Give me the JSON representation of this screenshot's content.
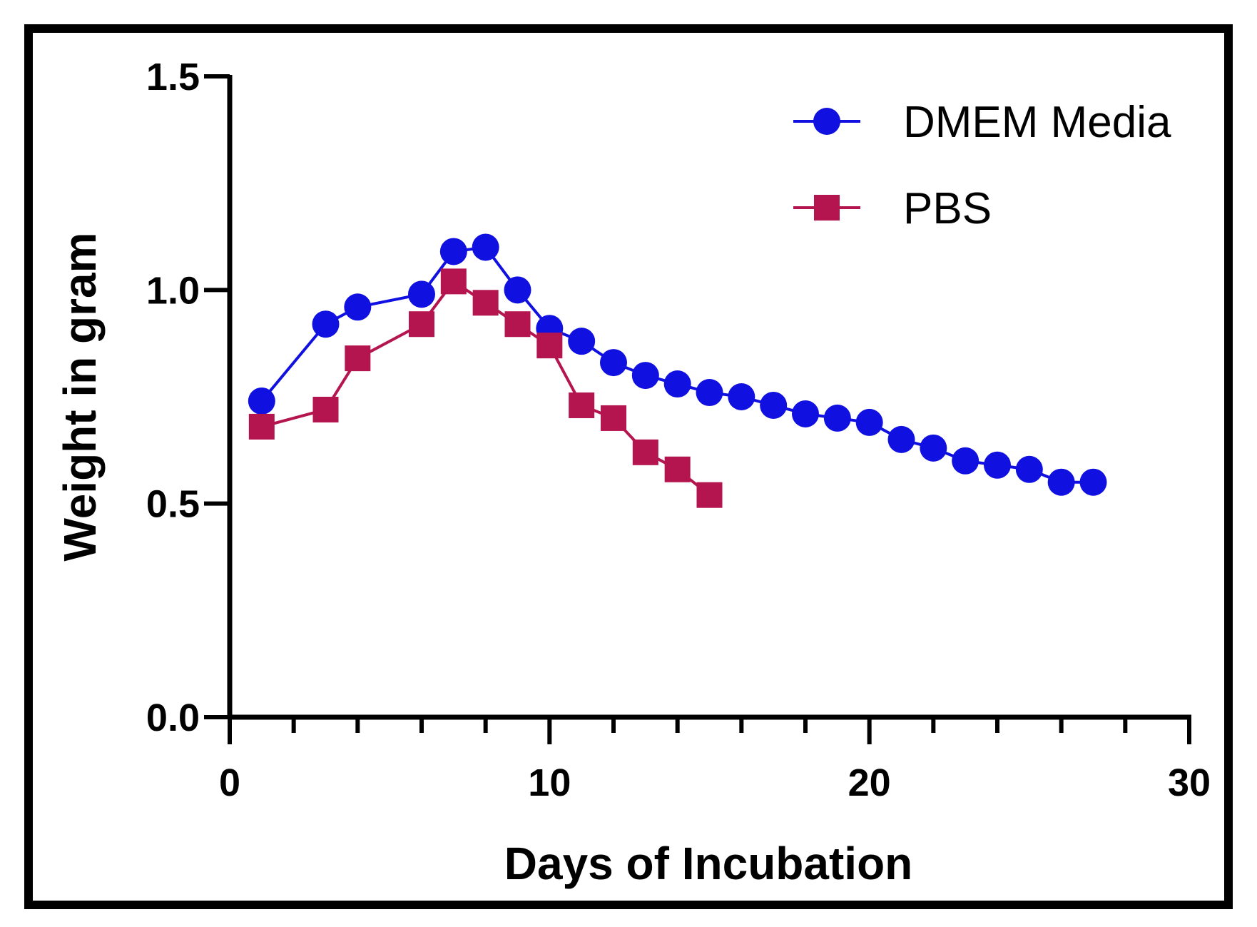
{
  "chart_data": {
    "type": "line",
    "title": "",
    "xlabel": "Days of Incubation",
    "ylabel": "Weight in gram",
    "xlim": [
      0,
      30
    ],
    "ylim": [
      0.0,
      1.5
    ],
    "x_ticks": [
      "0",
      "10",
      "20",
      "30"
    ],
    "y_ticks": [
      "0.0",
      "0.5",
      "1.0",
      "1.5"
    ],
    "grid": false,
    "legend_position": "top-right",
    "series": [
      {
        "name": "DMEM Media",
        "marker": "circle",
        "color": "#1010e0",
        "x": [
          1,
          3,
          4,
          6,
          7,
          8,
          9,
          10,
          11,
          12,
          13,
          14,
          15,
          16,
          17,
          18,
          19,
          20,
          21,
          22,
          23,
          24,
          25,
          26,
          27
        ],
        "y": [
          0.74,
          0.92,
          0.96,
          0.99,
          1.09,
          1.1,
          1.0,
          0.91,
          0.88,
          0.83,
          0.8,
          0.78,
          0.76,
          0.75,
          0.73,
          0.71,
          0.7,
          0.69,
          0.65,
          0.63,
          0.6,
          0.59,
          0.58,
          0.55,
          0.55
        ]
      },
      {
        "name": "PBS",
        "marker": "square",
        "color": "#b5154f",
        "x": [
          1,
          3,
          4,
          6,
          7,
          8,
          9,
          10,
          11,
          12,
          13,
          14,
          15
        ],
        "y": [
          0.68,
          0.72,
          0.84,
          0.92,
          1.02,
          0.97,
          0.92,
          0.87,
          0.73,
          0.7,
          0.62,
          0.58,
          0.52
        ]
      }
    ]
  }
}
